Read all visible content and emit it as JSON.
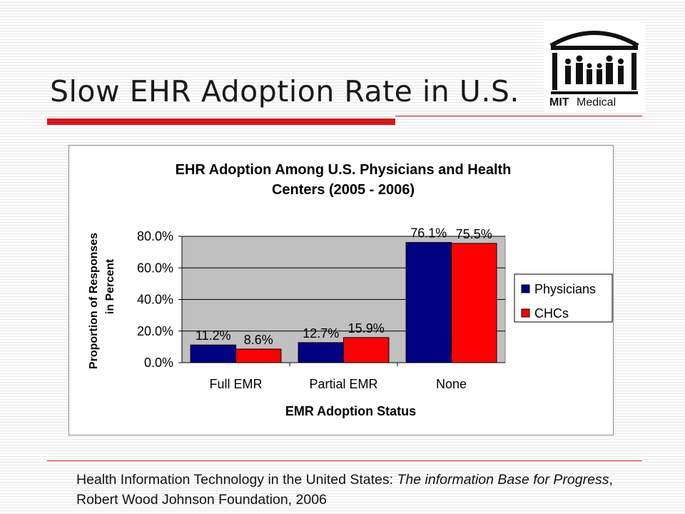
{
  "slide": {
    "title": "Slow EHR Adoption Rate in U.S.",
    "accent_color": "#d9161b"
  },
  "logo": {
    "text": "MIT Medical",
    "icon": "mit-medical-logo"
  },
  "citation": {
    "part1": "Health Information Technology in the United States: ",
    "italic1": "The information Base for Progress",
    "part2": ", Robert Wood Johnson Foundation, 2006"
  },
  "chart_data": {
    "type": "bar",
    "title_line1": "EHR Adoption Among U.S. Physicians and Health",
    "title_line2": "Centers (2005 - 2006)",
    "xlabel": "EMR Adoption Status",
    "ylabel_line1": "Proportion of Responses",
    "ylabel_line2": "in Percent",
    "categories": [
      "Full EMR",
      "Partial EMR",
      "None"
    ],
    "series": [
      {
        "name": "Physicians",
        "values": [
          11.2,
          12.7,
          76.1
        ],
        "labels": [
          "11.2%",
          "12.7%",
          "76.1%"
        ],
        "color": "#000080"
      },
      {
        "name": "CHCs",
        "values": [
          8.6,
          15.9,
          75.5
        ],
        "labels": [
          "8.6%",
          "15.9%",
          "75.5%"
        ],
        "color": "#ff0000"
      }
    ],
    "ylim": [
      0,
      80
    ],
    "yticks": [
      "0.0%",
      "20.0%",
      "40.0%",
      "60.0%",
      "80.0%"
    ],
    "ytick_values": [
      0,
      20,
      40,
      60,
      80
    ],
    "plot_background": "#c0c0c0",
    "grid": true,
    "legend_position": "right"
  }
}
